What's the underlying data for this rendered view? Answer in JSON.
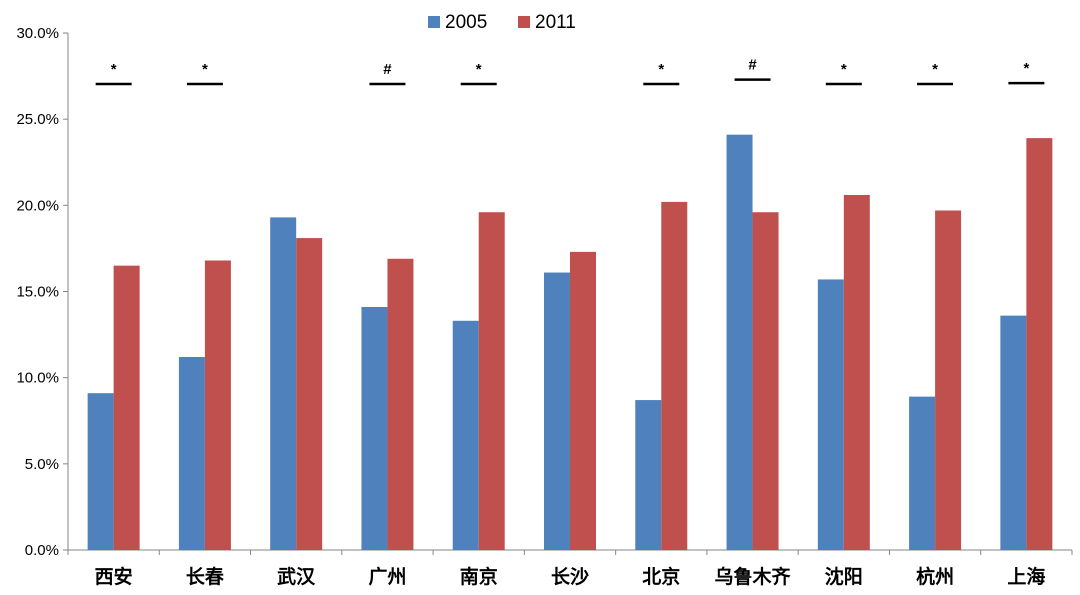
{
  "chart_data": {
    "type": "bar",
    "categories": [
      "西安",
      "长春",
      "武汉",
      "广州",
      "南京",
      "长沙",
      "北京",
      "乌鲁木齐",
      "沈阳",
      "杭州",
      "上海"
    ],
    "series": [
      {
        "name": "2005",
        "values": [
          9.1,
          11.2,
          19.3,
          14.1,
          13.3,
          16.1,
          8.7,
          24.1,
          15.7,
          8.9,
          13.6
        ]
      },
      {
        "name": "2011",
        "values": [
          16.5,
          16.8,
          18.1,
          16.9,
          19.6,
          17.3,
          20.2,
          19.6,
          20.6,
          19.7,
          23.9
        ]
      }
    ],
    "significance": [
      "*",
      "*",
      "",
      "#",
      "*",
      "",
      "*",
      "#",
      "*",
      "*",
      "*"
    ],
    "yticks": [
      "0.0%",
      "5.0%",
      "10.0%",
      "15.0%",
      "20.0%",
      "25.0%",
      "30.0%"
    ],
    "ylim": [
      0,
      30
    ],
    "colors": {
      "2005": "#4F81BD",
      "2011": "#C0504D"
    },
    "legend_position": "top",
    "grid": false
  }
}
